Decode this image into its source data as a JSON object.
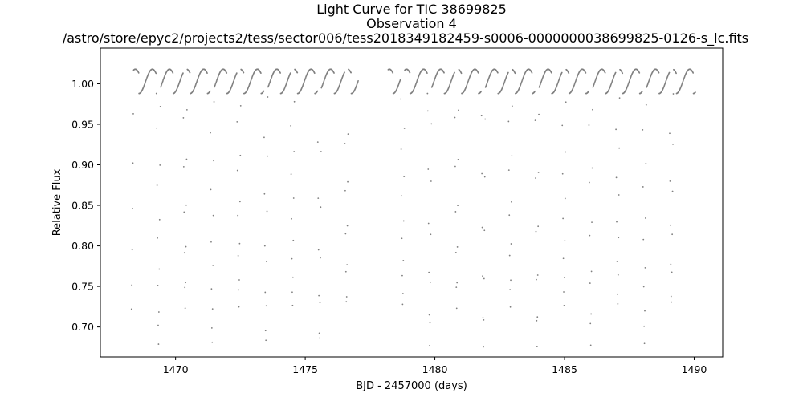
{
  "chart_data": {
    "type": "scatter",
    "title_lines": [
      "Light Curve for TIC 38699825",
      "Observation 4",
      "/astro/store/epyc2/projects2/tess/sector006/tess2018349182459-s0006-0000000038699825-0126-s_lc.fits"
    ],
    "xlabel": "BJD - 2457000 (days)",
    "ylabel": "Relative Flux",
    "xlim": [
      1467.1,
      1491.1
    ],
    "ylim": [
      0.663,
      1.044
    ],
    "xticks": [
      1470,
      1475,
      1480,
      1485,
      1490
    ],
    "xtick_labels": [
      "1470",
      "1475",
      "1480",
      "1485",
      "1490"
    ],
    "yticks": [
      0.7,
      0.75,
      0.8,
      0.85,
      0.9,
      0.95,
      1.0
    ],
    "ytick_labels": [
      "0.70",
      "0.75",
      "0.80",
      "0.85",
      "0.90",
      "0.95",
      "1.00"
    ],
    "grid": false,
    "marker_color": "#808080",
    "series": [
      {
        "x_start": 1468.3,
        "x_end": 1477.05,
        "cadence_days": 0.0139,
        "period_days": 2.071,
        "primary_eclipse_times": [
          1469.34,
          1471.41,
          1473.48,
          1475.55
        ],
        "primary_eclipse_depth_min": 0.675,
        "secondary_eclipse_times": [
          1468.3,
          1470.37,
          1472.44,
          1474.51,
          1476.59
        ],
        "secondary_eclipse_depth_min": 0.722,
        "out_of_eclipse_peak": 1.018,
        "out_of_eclipse_shoulder": 0.988
      },
      {
        "x_start": 1478.2,
        "x_end": 1490.05,
        "cadence_days": 0.0139,
        "period_days": 2.071,
        "primary_eclipse_times": [
          1479.8,
          1481.87,
          1483.94,
          1486.01,
          1488.08
        ],
        "primary_eclipse_depth_min": 0.675,
        "secondary_eclipse_times": [
          1478.76,
          1480.84,
          1482.91,
          1484.98,
          1487.05,
          1489.12
        ],
        "secondary_eclipse_depth_min": 0.722,
        "out_of_eclipse_peak": 1.018,
        "out_of_eclipse_shoulder": 0.988
      }
    ]
  }
}
